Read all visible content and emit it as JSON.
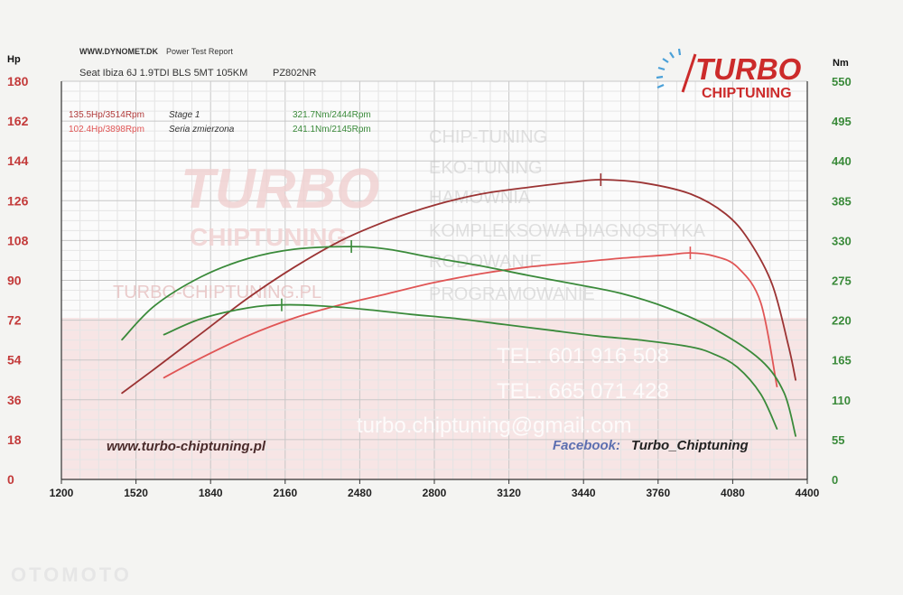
{
  "report": {
    "site": "WWW.DYNOMET.DK",
    "report_title": "Power Test Report",
    "vehicle": "Seat Ibiza 6J 1.9TDI BLS 5MT 105KM",
    "code": "PZ802NR"
  },
  "brand": {
    "name_turbo": "TURBO",
    "name_chiptuning": "CHIPTUNING",
    "accent": "#cc2b2b"
  },
  "watermark": {
    "services": [
      "CHIP-TUNING",
      "EKO-TUNING",
      "HAMOWNIA",
      "KOMPLEKSOWA DIAGNOSTYKA",
      "RODOWANIE",
      "PROGRAMOWANIE"
    ],
    "phone1": "TEL. 601 916 508",
    "phone2": "TEL. 665 071 428",
    "email": "turbo.chiptuning@gmail.com",
    "left_turbo": "TURBO",
    "left_chiptuning": "CHIPTUNING",
    "left_sub": "TURBO-CHIPTUNING.PL"
  },
  "footer": {
    "website": "www.turbo-chiptuning.pl",
    "facebook_label": "Facebook:",
    "facebook_name": "Turbo_Chiptuning",
    "corner_mark": "OTOMOTO"
  },
  "legend": {
    "stage_hp": "135.5Hp/3514Rpm",
    "stage_label": "Stage 1",
    "stage_nm": "321.7Nm/2444Rpm",
    "stock_hp": "102.4Hp/3898Rpm",
    "stock_label": "Seria zmierzona",
    "stock_nm": "241.1Nm/2145Rpm"
  },
  "chart_data": {
    "type": "line",
    "x_ticks": [
      1200,
      1520,
      1840,
      2160,
      2480,
      2800,
      3120,
      3440,
      3760,
      4080,
      4400
    ],
    "xlim": [
      1200,
      4400
    ],
    "left_axis": {
      "unit": "Hp",
      "ticks": [
        0,
        18,
        36,
        54,
        72,
        90,
        108,
        126,
        144,
        162,
        180
      ],
      "ylim": [
        0,
        180
      ]
    },
    "right_axis": {
      "unit": "Nm",
      "ticks": [
        0,
        55,
        110,
        165,
        220,
        275,
        330,
        385,
        440,
        495,
        550
      ],
      "ylim": [
        0,
        550
      ]
    },
    "grid": true,
    "series": [
      {
        "name": "Stage 1",
        "quantity": "power",
        "axis": "left",
        "color": "#9b3333",
        "x": [
          1460,
          1600,
          1800,
          2000,
          2200,
          2400,
          2600,
          2800,
          3000,
          3200,
          3400,
          3514,
          3700,
          3900,
          4050,
          4150,
          4250,
          4320,
          4350
        ],
        "y": [
          39,
          50,
          66,
          82,
          96,
          108,
          117,
          124,
          129,
          132,
          134.5,
          135.5,
          134,
          129,
          120,
          108,
          88,
          60,
          45
        ],
        "peak": {
          "x": 3514,
          "y": 135.5
        }
      },
      {
        "name": "Seria zmierzona",
        "quantity": "power",
        "axis": "left",
        "color": "#e05555",
        "x": [
          1640,
          1800,
          2000,
          2200,
          2400,
          2600,
          2800,
          3000,
          3200,
          3400,
          3600,
          3800,
          3898,
          4000,
          4100,
          4200,
          4270
        ],
        "y": [
          46,
          55,
          65,
          73,
          79,
          84,
          89,
          93,
          96,
          98,
          100,
          101.5,
          102.4,
          101,
          96,
          80,
          42
        ],
        "peak": {
          "x": 3898,
          "y": 102.4
        }
      },
      {
        "name": "Stage 1",
        "quantity": "torque",
        "axis": "right",
        "color": "#3a8a3a",
        "x": [
          1460,
          1600,
          1800,
          2000,
          2200,
          2444,
          2600,
          2800,
          3000,
          3200,
          3400,
          3600,
          3800,
          4000,
          4200,
          4300,
          4350
        ],
        "y": [
          193,
          240,
          280,
          305,
          318,
          321.7,
          318,
          306,
          295,
          282,
          270,
          257,
          237,
          208,
          165,
          120,
          60
        ],
        "peak": {
          "x": 2444,
          "y": 321.7
        }
      },
      {
        "name": "Seria zmierzona",
        "quantity": "torque",
        "axis": "right",
        "color": "#3a8a3a",
        "x": [
          1640,
          1800,
          2000,
          2145,
          2300,
          2500,
          2700,
          2900,
          3100,
          3300,
          3500,
          3700,
          3900,
          4000,
          4100,
          4200,
          4270
        ],
        "y": [
          200,
          222,
          237,
          241.1,
          240,
          235,
          228,
          222,
          214,
          206,
          198,
          192,
          183,
          173,
          155,
          118,
          70
        ],
        "peak": {
          "x": 2145,
          "y": 241.1
        }
      }
    ]
  }
}
